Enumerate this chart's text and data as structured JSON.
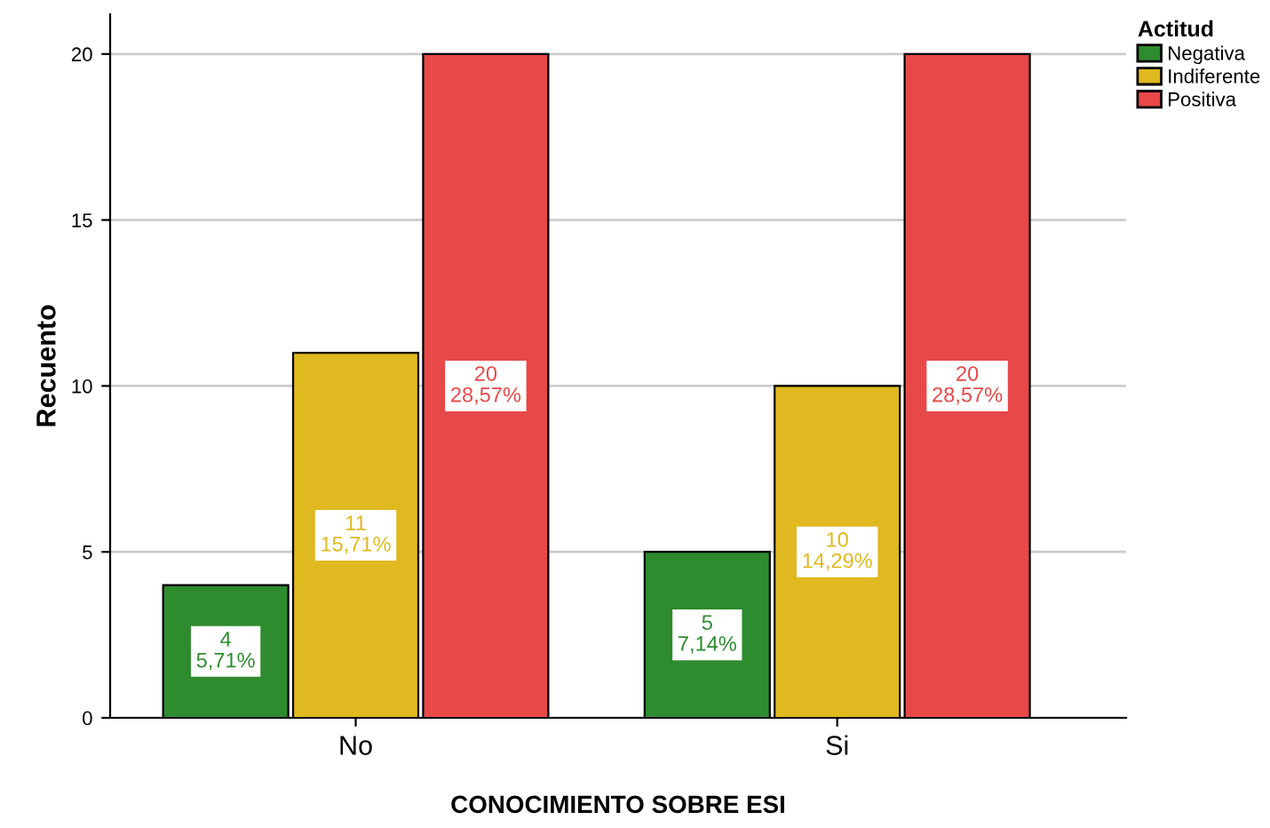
{
  "chart_data": {
    "type": "bar",
    "xlabel": "CONOCIMIENTO SOBRE ESI",
    "ylabel": "Recuento",
    "legend_title": "Actitud",
    "categories": [
      "No",
      "Si"
    ],
    "series": [
      {
        "name": "Negativa",
        "color": "#2e8b2e",
        "values": [
          4,
          5
        ],
        "value_labels": [
          "4\n5,71%",
          "5\n7,14%"
        ]
      },
      {
        "name": "Indiferente",
        "color": "#e0b820",
        "values": [
          11,
          10
        ],
        "value_labels": [
          "11\n15,71%",
          "10\n14,29%"
        ]
      },
      {
        "name": "Positiva",
        "color": "#e84848",
        "values": [
          20,
          20
        ],
        "value_labels": [
          "20\n28,57%",
          "20\n28,57%"
        ]
      }
    ],
    "ylim": [
      0,
      21.2
    ],
    "yticks": [
      0,
      5,
      10,
      15,
      20
    ],
    "grid": "y",
    "legend": "top right"
  }
}
